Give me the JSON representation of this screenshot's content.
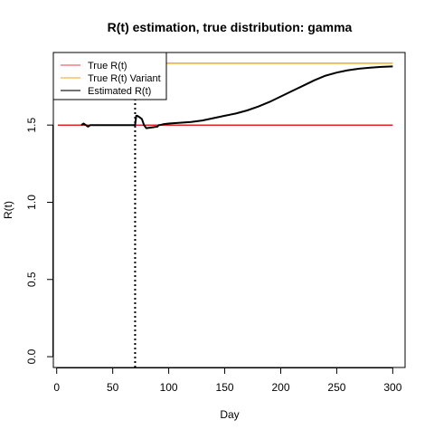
{
  "chart_data": {
    "type": "line",
    "title": "R(t) estimation, true distribution: gamma",
    "xlabel": "Day",
    "ylabel": "R(t)",
    "xlim": [
      -3,
      311
    ],
    "ylim": [
      -0.07,
      1.97
    ],
    "x_ticks": [
      0,
      50,
      100,
      150,
      200,
      250,
      300
    ],
    "y_ticks": [
      0.0,
      0.5,
      1.0,
      1.5
    ],
    "x_tick_labels": [
      "0",
      "50",
      "100",
      "150",
      "200",
      "250",
      "300"
    ],
    "y_tick_labels": [
      "0.0",
      "0.5",
      "1.0",
      "1.5"
    ],
    "grid": false,
    "legend_position": "top-left",
    "vline": {
      "x": 70,
      "style": "dotted",
      "color": "#000000"
    },
    "series": [
      {
        "name": "True R(t)",
        "color": "#e8202a",
        "legend_color": "#f08080",
        "x": [
          1,
          300
        ],
        "y": [
          1.5,
          1.5
        ]
      },
      {
        "name": "True R(t) Variant",
        "color": "#f5a623",
        "legend_color": "#f5c26b",
        "x": [
          70,
          300
        ],
        "y": [
          1.9,
          1.9
        ]
      },
      {
        "name": "Estimated R(t)",
        "color": "#000000",
        "legend_color": "#444444",
        "x": [
          22,
          24,
          26,
          28,
          30,
          35,
          40,
          50,
          60,
          69,
          70,
          71,
          72,
          74,
          76,
          78,
          80,
          85,
          90,
          91,
          92,
          95,
          100,
          110,
          120,
          130,
          140,
          150,
          160,
          170,
          180,
          190,
          200,
          210,
          220,
          230,
          240,
          250,
          260,
          270,
          280,
          290,
          300
        ],
        "y": [
          1.5,
          1.51,
          1.5,
          1.49,
          1.5,
          1.5,
          1.5,
          1.5,
          1.5,
          1.5,
          1.5,
          1.56,
          1.56,
          1.55,
          1.54,
          1.5,
          1.48,
          1.485,
          1.49,
          1.5,
          1.5,
          1.505,
          1.51,
          1.515,
          1.52,
          1.53,
          1.545,
          1.56,
          1.575,
          1.595,
          1.62,
          1.65,
          1.685,
          1.72,
          1.755,
          1.79,
          1.82,
          1.84,
          1.855,
          1.865,
          1.872,
          1.877,
          1.88
        ]
      }
    ]
  }
}
